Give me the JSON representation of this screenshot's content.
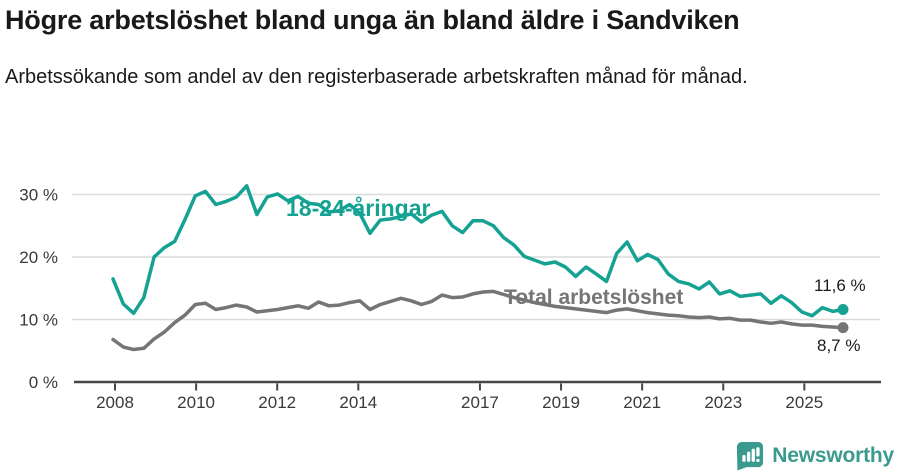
{
  "header": {
    "title": "Högre arbetslöshet bland unga än bland äldre i Sandviken",
    "subtitle": "Arbetssökande som andel av den registerbaserade arbetskraften månad för månad."
  },
  "chart_data": {
    "type": "line",
    "title": "Högre arbetslöshet bland unga än bland äldre i Sandviken",
    "xlabel": "",
    "ylabel": "",
    "grid": true,
    "ylim": [
      0,
      33
    ],
    "x_start_year": 2008.0,
    "x_step_years": 0.25,
    "x_end_year": 2025.75,
    "y_ticks": [
      {
        "value": 0,
        "label": "0 %"
      },
      {
        "value": 10,
        "label": "10 %"
      },
      {
        "value": 20,
        "label": "20 %"
      },
      {
        "value": 30,
        "label": "30 %"
      }
    ],
    "x_ticks": [
      {
        "year": 2008,
        "label": "2008"
      },
      {
        "year": 2010,
        "label": "2010"
      },
      {
        "year": 2012,
        "label": "2012"
      },
      {
        "year": 2014,
        "label": "2014"
      },
      {
        "year": 2017,
        "label": "2017"
      },
      {
        "year": 2019,
        "label": "2019"
      },
      {
        "year": 2021,
        "label": "2021"
      },
      {
        "year": 2023,
        "label": "2023"
      },
      {
        "year": 2025,
        "label": "2025"
      }
    ],
    "series": [
      {
        "name": "18-24-åringar",
        "inline_label": "18-24-åringar",
        "end_value": 11.6,
        "end_value_label": "11,6 %",
        "color": "#15a292",
        "values": [
          16.5,
          12.5,
          11.0,
          13.5,
          20.0,
          21.5,
          22.5,
          26.0,
          29.8,
          30.5,
          28.4,
          28.9,
          29.6,
          31.4,
          26.8,
          29.6,
          30.1,
          29.0,
          29.7,
          28.6,
          28.4,
          27.2,
          27.4,
          28.4,
          27.0,
          23.8,
          25.9,
          26.1,
          26.5,
          26.9,
          25.6,
          26.7,
          27.3,
          25.0,
          23.9,
          25.8,
          25.8,
          25.0,
          23.1,
          21.9,
          20.1,
          19.5,
          18.9,
          19.2,
          18.4,
          16.9,
          18.4,
          17.3,
          16.1,
          20.6,
          22.4,
          19.4,
          20.4,
          19.6,
          17.3,
          16.1,
          15.7,
          14.9,
          16.0,
          14.1,
          14.6,
          13.7,
          13.9,
          14.1,
          12.6,
          13.8,
          12.7,
          11.2,
          10.6,
          11.9,
          11.3,
          11.6
        ]
      },
      {
        "name": "Total arbetslöshet",
        "inline_label": "Total arbetslöshet",
        "end_value": 8.7,
        "end_value_label": "8,7 %",
        "color": "#757575",
        "values": [
          6.8,
          5.6,
          5.2,
          5.4,
          6.9,
          8.0,
          9.5,
          10.7,
          12.4,
          12.6,
          11.6,
          11.9,
          12.3,
          12.0,
          11.2,
          11.4,
          11.6,
          11.9,
          12.2,
          11.8,
          12.8,
          12.2,
          12.3,
          12.7,
          13.0,
          11.6,
          12.4,
          12.9,
          13.4,
          13.0,
          12.4,
          12.9,
          13.9,
          13.5,
          13.6,
          14.1,
          14.4,
          14.5,
          14.0,
          13.5,
          13.1,
          12.7,
          12.4,
          12.1,
          11.9,
          11.7,
          11.5,
          11.3,
          11.1,
          11.5,
          11.7,
          11.4,
          11.1,
          10.9,
          10.7,
          10.6,
          10.4,
          10.3,
          10.4,
          10.1,
          10.2,
          9.9,
          9.9,
          9.6,
          9.4,
          9.6,
          9.3,
          9.1,
          9.1,
          8.9,
          8.8,
          8.7
        ]
      }
    ]
  },
  "footer": {
    "brand": "Newsworthy",
    "brand_color": "#3b9a8e",
    "logo_icon": "bar-chart-speech-bubble-icon"
  },
  "colors": {
    "accent_teal": "#15a292",
    "line_gray": "#757575",
    "text": "#1a1a1a",
    "grid": "#dcdcdc",
    "axis": "#474747"
  }
}
